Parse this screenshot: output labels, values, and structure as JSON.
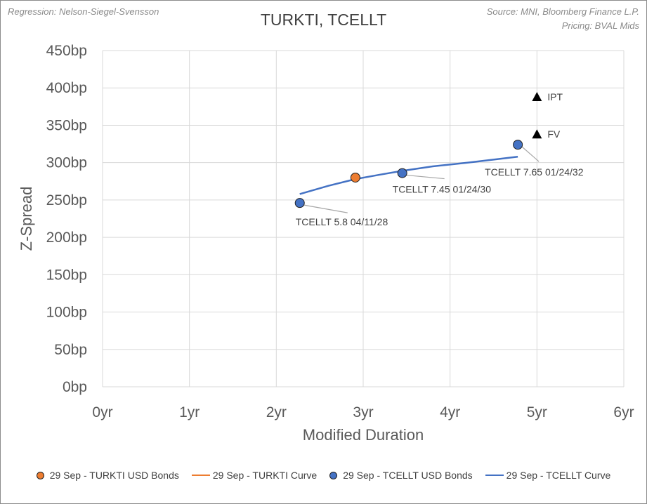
{
  "notes": {
    "left": "Regression: Nelson-Siegel-Svensson",
    "right_line1": "Source: MNI, Bloomberg Finance L.P.",
    "right_line2": "Pricing: BVAL Mids"
  },
  "chart_data": {
    "type": "scatter",
    "title": "TURKTI, TCELLT",
    "xlabel": "Modified Duration",
    "ylabel": "Z-Spread",
    "xlim": [
      0,
      6
    ],
    "ylim": [
      0,
      450
    ],
    "x_ticks": [
      "0yr",
      "1yr",
      "2yr",
      "3yr",
      "4yr",
      "5yr",
      "6yr"
    ],
    "y_ticks": [
      "0bp",
      "50bp",
      "100bp",
      "150bp",
      "200bp",
      "250bp",
      "300bp",
      "350bp",
      "400bp",
      "450bp"
    ],
    "grid": "vertical and horizontal major gridlines",
    "legend_position": "bottom",
    "colors": {
      "turkti": "#ed7d31",
      "tcellt": "#4472c4",
      "curve": "#4472c4",
      "triangle": "#000000",
      "grid": "#d9d9d9",
      "leader": "#a6a6a6"
    },
    "series": [
      {
        "name": "29 Sep - TURKTI  USD Bonds",
        "kind": "points",
        "points": [
          {
            "x": 2.91,
            "y": 280
          }
        ]
      },
      {
        "name": "29 Sep - TURKTI Curve",
        "kind": "line",
        "points": []
      },
      {
        "name": "29 Sep - TCELLT  USD Bonds",
        "kind": "points",
        "points": [
          {
            "x": 2.27,
            "y": 246,
            "label": "TCELLT 5.8 04/11/28"
          },
          {
            "x": 3.45,
            "y": 286,
            "label": "TCELLT 7.45 01/24/30"
          },
          {
            "x": 4.78,
            "y": 324,
            "label": "TCELLT 7.65 01/24/32"
          }
        ]
      },
      {
        "name": "29 Sep - TCELLT Curve",
        "kind": "line",
        "points": [
          {
            "x": 2.27,
            "y": 258
          },
          {
            "x": 2.6,
            "y": 269
          },
          {
            "x": 2.91,
            "y": 278
          },
          {
            "x": 3.2,
            "y": 284
          },
          {
            "x": 3.45,
            "y": 289
          },
          {
            "x": 3.8,
            "y": 295
          },
          {
            "x": 4.2,
            "y": 300
          },
          {
            "x": 4.5,
            "y": 304
          },
          {
            "x": 4.78,
            "y": 308
          }
        ]
      }
    ],
    "markers": [
      {
        "x": 5.0,
        "y": 388,
        "label": "IPT",
        "shape": "triangle"
      },
      {
        "x": 5.0,
        "y": 338,
        "label": "FV",
        "shape": "triangle"
      }
    ]
  }
}
